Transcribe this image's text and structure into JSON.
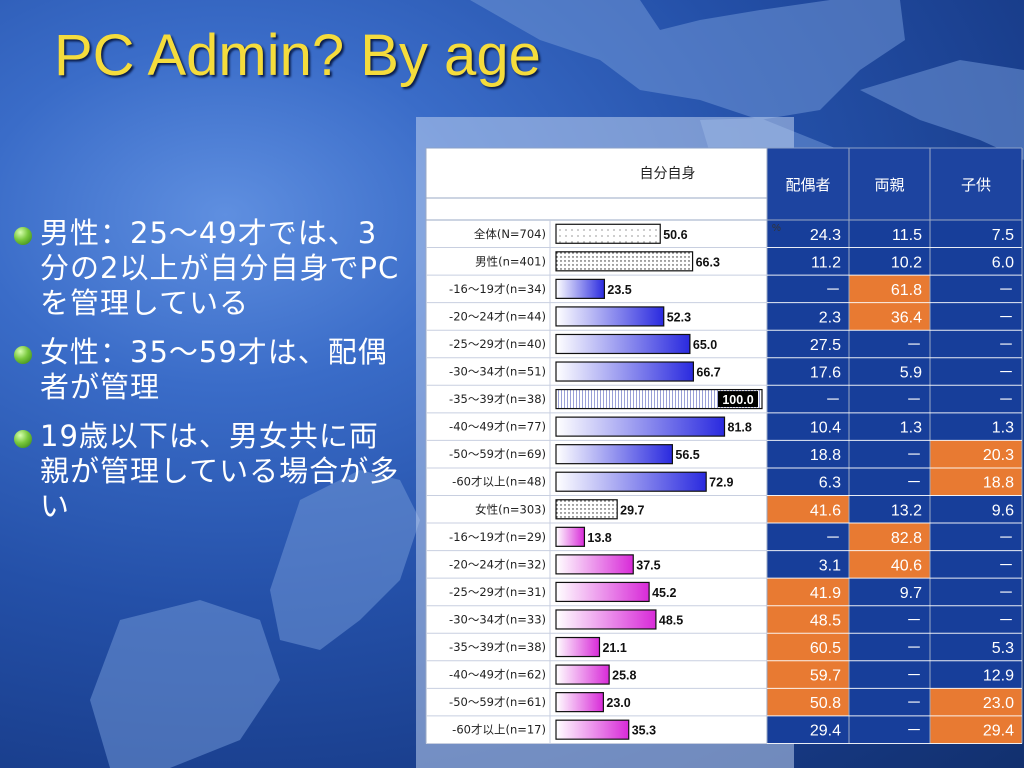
{
  "title": "PC Admin? By age",
  "bullets": [
    "男性：25～49才では、3分の2以上が自分自身でPCを管理している",
    "女性：35～59才は、配偶者が管理",
    "19歳以下は、男女共に両親が管理している場合が多い"
  ],
  "colors": {
    "highlight": "#e87a32",
    "male_bar": "#2a2adf",
    "female_bar": "#d82ad8",
    "title": "#f5dc3c",
    "value_cell": "#173e9a"
  },
  "chart_data": {
    "type": "table",
    "headers": {
      "main": "自分自身",
      "unit": "%",
      "columns": [
        "配偶者",
        "両親",
        "子供"
      ]
    },
    "rows": [
      {
        "label": "全体(N=704)",
        "group": "total",
        "value": 50.6,
        "values": [
          "24.3",
          "11.5",
          "7.5"
        ],
        "highlight": [
          false,
          false,
          false
        ]
      },
      {
        "label": "男性(n=401)",
        "group": "male_total",
        "value": 66.3,
        "values": [
          "11.2",
          "10.2",
          "6.0"
        ],
        "highlight": [
          false,
          false,
          false
        ]
      },
      {
        "label": "-16～19才(n=34)",
        "group": "male",
        "value": 23.5,
        "values": [
          "－",
          "61.8",
          "－"
        ],
        "highlight": [
          false,
          true,
          false
        ]
      },
      {
        "label": "-20～24才(n=44)",
        "group": "male",
        "value": 52.3,
        "values": [
          "2.3",
          "36.4",
          "－"
        ],
        "highlight": [
          false,
          true,
          false
        ]
      },
      {
        "label": "-25～29才(n=40)",
        "group": "male",
        "value": 65.0,
        "values": [
          "27.5",
          "－",
          "－"
        ],
        "highlight": [
          false,
          false,
          false
        ]
      },
      {
        "label": "-30～34才(n=51)",
        "group": "male",
        "value": 66.7,
        "values": [
          "17.6",
          "5.9",
          "－"
        ],
        "highlight": [
          false,
          false,
          false
        ]
      },
      {
        "label": "-35～39才(n=38)",
        "group": "male",
        "value": 100.0,
        "values": [
          "－",
          "－",
          "－"
        ],
        "highlight": [
          false,
          false,
          false
        ]
      },
      {
        "label": "-40～49才(n=77)",
        "group": "male",
        "value": 81.8,
        "values": [
          "10.4",
          "1.3",
          "1.3"
        ],
        "highlight": [
          false,
          false,
          false
        ]
      },
      {
        "label": "-50～59才(n=69)",
        "group": "male",
        "value": 56.5,
        "values": [
          "18.8",
          "－",
          "20.3"
        ],
        "highlight": [
          false,
          false,
          true
        ]
      },
      {
        "label": "-60才以上(n=48)",
        "group": "male",
        "value": 72.9,
        "values": [
          "6.3",
          "－",
          "18.8"
        ],
        "highlight": [
          false,
          false,
          true
        ]
      },
      {
        "label": "女性(n=303)",
        "group": "female_total",
        "value": 29.7,
        "values": [
          "41.6",
          "13.2",
          "9.6"
        ],
        "highlight": [
          true,
          false,
          false
        ]
      },
      {
        "label": "-16～19才(n=29)",
        "group": "female",
        "value": 13.8,
        "values": [
          "－",
          "82.8",
          "－"
        ],
        "highlight": [
          false,
          true,
          false
        ]
      },
      {
        "label": "-20～24才(n=32)",
        "group": "female",
        "value": 37.5,
        "values": [
          "3.1",
          "40.6",
          "－"
        ],
        "highlight": [
          false,
          true,
          false
        ]
      },
      {
        "label": "-25～29才(n=31)",
        "group": "female",
        "value": 45.2,
        "values": [
          "41.9",
          "9.7",
          "－"
        ],
        "highlight": [
          true,
          false,
          false
        ]
      },
      {
        "label": "-30～34才(n=33)",
        "group": "female",
        "value": 48.5,
        "values": [
          "48.5",
          "－",
          "－"
        ],
        "highlight": [
          true,
          false,
          false
        ]
      },
      {
        "label": "-35～39才(n=38)",
        "group": "female",
        "value": 21.1,
        "values": [
          "60.5",
          "－",
          "5.3"
        ],
        "highlight": [
          true,
          false,
          false
        ]
      },
      {
        "label": "-40～49才(n=62)",
        "group": "female",
        "value": 25.8,
        "values": [
          "59.7",
          "－",
          "12.9"
        ],
        "highlight": [
          true,
          false,
          false
        ]
      },
      {
        "label": "-50～59才(n=61)",
        "group": "female",
        "value": 23.0,
        "values": [
          "50.8",
          "－",
          "23.0"
        ],
        "highlight": [
          true,
          false,
          true
        ]
      },
      {
        "label": "-60才以上(n=17)",
        "group": "female",
        "value": 35.3,
        "values": [
          "29.4",
          "－",
          "29.4"
        ],
        "highlight": [
          false,
          false,
          true
        ]
      }
    ]
  }
}
